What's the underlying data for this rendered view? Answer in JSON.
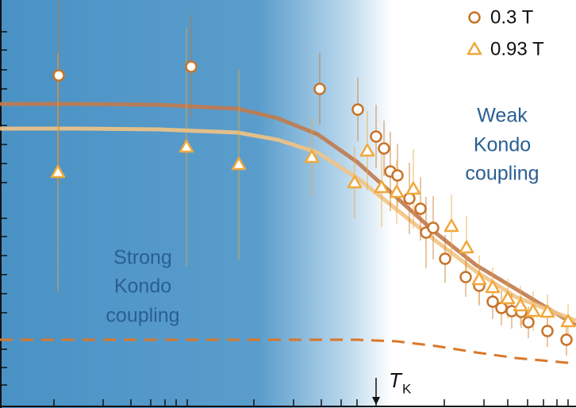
{
  "chart_data": {
    "type": "scatter",
    "xlim": [
      0,
      726
    ],
    "ylim": [
      0,
      514
    ],
    "log_x": true,
    "xticks": [
      68,
      130,
      165,
      190,
      208,
      222,
      236,
      320,
      370,
      405,
      430,
      450,
      474,
      560,
      610,
      640,
      665,
      685,
      702,
      716
    ],
    "yticks": [
      29,
      51,
      74,
      120,
      144,
      168,
      192,
      216,
      239,
      284,
      308,
      332,
      356,
      402,
      426,
      451,
      474
    ],
    "series": [
      {
        "name": "0.3 T",
        "marker": "circle",
        "color": "#c8742a",
        "x": [
          74,
          241,
          403,
          451,
          474,
          484,
          492,
          501,
          516,
          530,
          537,
          546,
          561,
          587,
          604,
          621,
          632,
          645,
          657,
          666,
          690,
          714
        ],
        "values": [
          419,
          430,
          402,
          376,
          342,
          327,
          298,
          293,
          264,
          251,
          221,
          227,
          188,
          165,
          154,
          134,
          126,
          122,
          121,
          108,
          97,
          86
        ],
        "errors": [
          138,
          65,
          45,
          40,
          40,
          35,
          50,
          40,
          45,
          40,
          45,
          40,
          30,
          25,
          25,
          22,
          22,
          22,
          20,
          20,
          20,
          20
        ]
      },
      {
        "name": "0.93 T",
        "marker": "triangle",
        "color": "#f0a83a",
        "x": [
          73,
          235,
          301,
          393,
          447,
          463,
          481,
          500,
          521,
          569,
          588,
          604,
          621,
          640,
          656,
          672,
          690,
          716
        ],
        "values": [
          297,
          329,
          307,
          316,
          284,
          324,
          278,
          272,
          276,
          229,
          202,
          162,
          152,
          138,
          129,
          122,
          121,
          109
        ],
        "errors": [
          150,
          150,
          120,
          50,
          45,
          50,
          50,
          40,
          50,
          40,
          40,
          30,
          25,
          25,
          25,
          25,
          22,
          22
        ]
      }
    ],
    "fits": [
      {
        "color": "#c07a4c",
        "dashed": false,
        "x": [
          0,
          100,
          200,
          300,
          350,
          400,
          450,
          500,
          550,
          600,
          650,
          726
        ],
        "values": [
          383,
          383,
          382,
          377,
          365,
          345,
          310,
          265,
          220,
          180,
          150,
          104
        ]
      },
      {
        "color": "#f2c383",
        "dashed": false,
        "x": [
          0,
          100,
          200,
          300,
          350,
          400,
          450,
          500,
          550,
          600,
          650,
          726
        ],
        "values": [
          352,
          352,
          351,
          347,
          338,
          322,
          290,
          250,
          210,
          172,
          140,
          110
        ]
      },
      {
        "color": "#d9782a",
        "dashed": true,
        "x": [
          0,
          100,
          200,
          300,
          400,
          450,
          500,
          550,
          600,
          650,
          726
        ],
        "values": [
          86,
          86,
          86,
          86,
          86,
          86,
          84,
          78,
          70,
          63,
          56
        ]
      }
    ],
    "weak_label": [
      "Weak",
      "Kondo",
      "coupling"
    ],
    "strong_label": [
      "Strong",
      "Kondo",
      "coupling"
    ],
    "tk_symbol": "T",
    "tk_subscript": "K",
    "tk_x": 474
  }
}
